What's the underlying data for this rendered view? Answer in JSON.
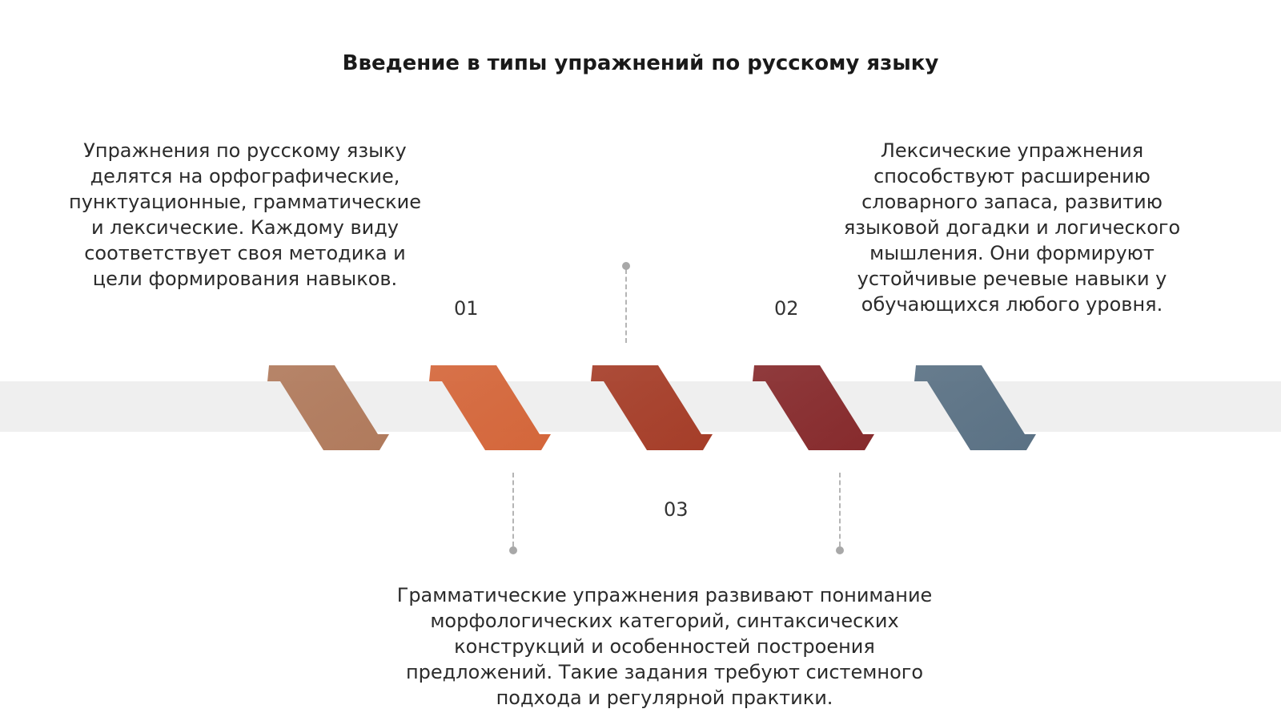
{
  "title": "Введение в типы упражнений по русскому языку",
  "steps": [
    {
      "number": "01",
      "text": "Упражнения по русскому языку\nделятся на орфографические,\nпунктуационные, грамматические\nи лексические. Каждому виду\nсоответствует своя методика и\nцели формирования навыков."
    },
    {
      "number": "02",
      "text": "Лексические упражнения\nспособствуют расширению\nсловарного запаса, развитию\nязыковой догадки и логического\nмышления. Они формируют\nустойчивые речевые навыки у\nобучающихся любого уровня."
    },
    {
      "number": "03",
      "text": "Грамматические упражнения развивают понимание\nморфологических категорий, синтаксических\nконструкций и особенностей построения\nпредложений. Такие задания требуют системного\nподхода и регулярной практики."
    }
  ],
  "chevron_colors": [
    "#b07a5c",
    "#d4663a",
    "#a53d28",
    "#862a2c",
    "#5a7184"
  ],
  "band_color": "#efefef",
  "connector_color": "#b5b5b5"
}
